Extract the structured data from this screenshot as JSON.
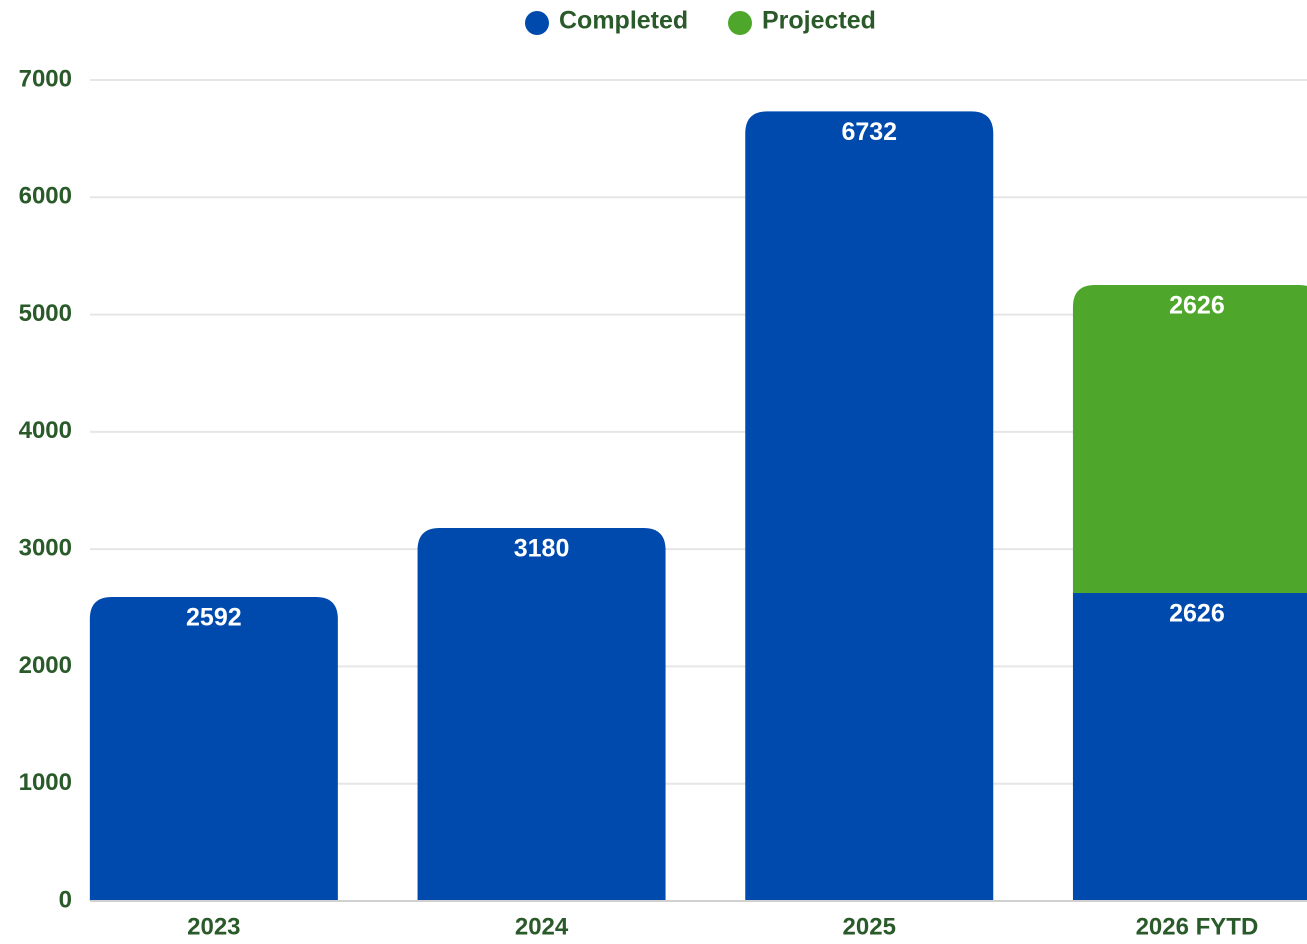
{
  "chart_data": {
    "type": "bar",
    "stacked": true,
    "categories": [
      "2023",
      "2024",
      "2025",
      "2026 FYTD"
    ],
    "series": [
      {
        "name": "Completed",
        "color": "#004aad",
        "values": [
          2592,
          3180,
          6732,
          2626
        ]
      },
      {
        "name": "Projected",
        "color": "#4ea72a",
        "values": [
          null,
          null,
          null,
          2626
        ]
      }
    ],
    "ylim": [
      0,
      7000
    ],
    "yticks": [
      0,
      1000,
      2000,
      3000,
      4000,
      5000,
      6000,
      7000
    ],
    "grid": true,
    "legend": "top"
  }
}
